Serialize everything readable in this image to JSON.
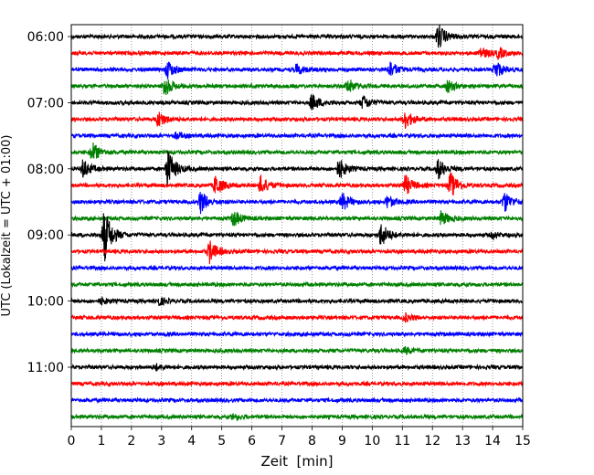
{
  "chart_data": {
    "type": "line",
    "title": "",
    "xlabel": "Zeit  [min]",
    "ylabel": "UTC (Lokalzeit = UTC + 01:00)",
    "xlim": [
      0,
      15
    ],
    "x_ticks": [
      0,
      1,
      2,
      3,
      4,
      5,
      6,
      7,
      8,
      9,
      10,
      11,
      12,
      13,
      14,
      15
    ],
    "y_ticks": [
      {
        "trace": 0,
        "label": "06:00"
      },
      {
        "trace": 4,
        "label": "07:00"
      },
      {
        "trace": 8,
        "label": "08:00"
      },
      {
        "trace": 12,
        "label": "09:00"
      },
      {
        "trace": 16,
        "label": "10:00"
      },
      {
        "trace": 20,
        "label": "11:00"
      }
    ],
    "grid": "vertical dotted at each minute",
    "trace_interval_min": 15,
    "color_cycle": [
      "#000000",
      "#ff0000",
      "#0000ff",
      "#008000"
    ],
    "traces": [
      {
        "start": "06:00",
        "events": [
          {
            "t": 12.2,
            "amp": 1.2
          }
        ]
      },
      {
        "start": "06:15",
        "events": [
          {
            "t": 13.6,
            "amp": 0.6
          },
          {
            "t": 14.2,
            "amp": 0.5
          }
        ]
      },
      {
        "start": "06:30",
        "events": [
          {
            "t": 3.2,
            "amp": 0.9
          },
          {
            "t": 7.5,
            "amp": 0.5
          },
          {
            "t": 10.6,
            "amp": 0.8
          },
          {
            "t": 14.1,
            "amp": 0.9
          }
        ]
      },
      {
        "start": "06:45",
        "events": [
          {
            "t": 3.1,
            "amp": 1.0
          },
          {
            "t": 9.2,
            "amp": 0.7
          },
          {
            "t": 12.5,
            "amp": 0.6
          }
        ]
      },
      {
        "start": "07:00",
        "events": [
          {
            "t": 8.0,
            "amp": 0.8
          },
          {
            "t": 9.7,
            "amp": 0.7
          }
        ]
      },
      {
        "start": "07:15",
        "events": [
          {
            "t": 2.9,
            "amp": 0.8
          },
          {
            "t": 11.1,
            "amp": 0.9
          }
        ]
      },
      {
        "start": "07:30",
        "events": [
          {
            "t": 3.5,
            "amp": 0.3
          }
        ]
      },
      {
        "start": "07:45",
        "events": [
          {
            "t": 0.7,
            "amp": 1.0
          }
        ]
      },
      {
        "start": "08:00",
        "events": [
          {
            "t": 0.4,
            "amp": 0.9
          },
          {
            "t": 3.2,
            "amp": 2.0
          },
          {
            "t": 8.9,
            "amp": 1.0
          },
          {
            "t": 12.2,
            "amp": 1.0
          }
        ]
      },
      {
        "start": "08:15",
        "events": [
          {
            "t": 4.8,
            "amp": 1.0
          },
          {
            "t": 6.3,
            "amp": 0.9
          },
          {
            "t": 11.1,
            "amp": 1.0
          },
          {
            "t": 12.6,
            "amp": 1.3
          }
        ]
      },
      {
        "start": "08:30",
        "events": [
          {
            "t": 4.3,
            "amp": 1.1
          },
          {
            "t": 9.0,
            "amp": 0.9
          },
          {
            "t": 10.5,
            "amp": 0.6
          },
          {
            "t": 14.4,
            "amp": 1.0
          }
        ]
      },
      {
        "start": "08:45",
        "events": [
          {
            "t": 5.4,
            "amp": 0.8
          },
          {
            "t": 12.3,
            "amp": 0.7
          }
        ]
      },
      {
        "start": "09:00",
        "events": [
          {
            "t": 1.1,
            "amp": 2.7
          },
          {
            "t": 10.3,
            "amp": 1.2
          },
          {
            "t": 14.0,
            "amp": 0.3
          }
        ]
      },
      {
        "start": "09:15",
        "events": [
          {
            "t": 4.6,
            "amp": 1.1
          }
        ]
      },
      {
        "start": "09:30",
        "events": []
      },
      {
        "start": "09:45",
        "events": []
      },
      {
        "start": "10:00",
        "events": [
          {
            "t": 1.0,
            "amp": 0.3
          },
          {
            "t": 2.9,
            "amp": 0.4
          }
        ]
      },
      {
        "start": "10:15",
        "events": [
          {
            "t": 11.1,
            "amp": 0.4
          }
        ]
      },
      {
        "start": "10:30",
        "events": []
      },
      {
        "start": "10:45",
        "events": [
          {
            "t": 11.1,
            "amp": 0.3
          }
        ]
      },
      {
        "start": "11:00",
        "events": [
          {
            "t": 2.8,
            "amp": 0.3
          }
        ]
      },
      {
        "start": "11:15",
        "events": []
      },
      {
        "start": "11:30",
        "events": []
      },
      {
        "start": "11:45",
        "events": [
          {
            "t": 5.4,
            "amp": 0.3
          }
        ]
      }
    ]
  }
}
